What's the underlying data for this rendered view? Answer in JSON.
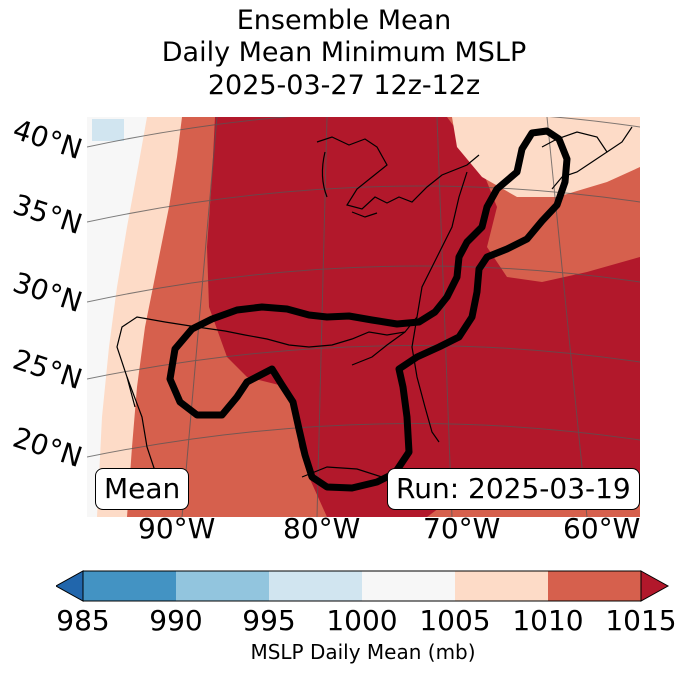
{
  "titles": {
    "line1": "Ensemble Mean",
    "line2": "Daily Mean Minimum MSLP",
    "line3": "2025-03-27 12z-12z"
  },
  "lat_labels": [
    "40°N",
    "35°N",
    "30°N",
    "25°N",
    "20°N"
  ],
  "lon_labels": [
    "90°W",
    "80°W",
    "70°W",
    "60°W"
  ],
  "boxes": {
    "mean": "Mean",
    "run": "Run: 2025-03-19"
  },
  "colorbar": {
    "ticks": [
      "985",
      "990",
      "995",
      "1000",
      "1005",
      "1010",
      "1015"
    ],
    "label": "MSLP Daily Mean (mb)",
    "colors": {
      "under": "#2166ac",
      "b985_990": "#4393c3",
      "b990_995": "#92c5de",
      "b995_1000": "#d1e5f0",
      "b1000_1005": "#f7f7f7",
      "b1005_1010": "#fddbc7",
      "b1010_1015": "#d6604d",
      "over": "#b2182b"
    }
  }
}
